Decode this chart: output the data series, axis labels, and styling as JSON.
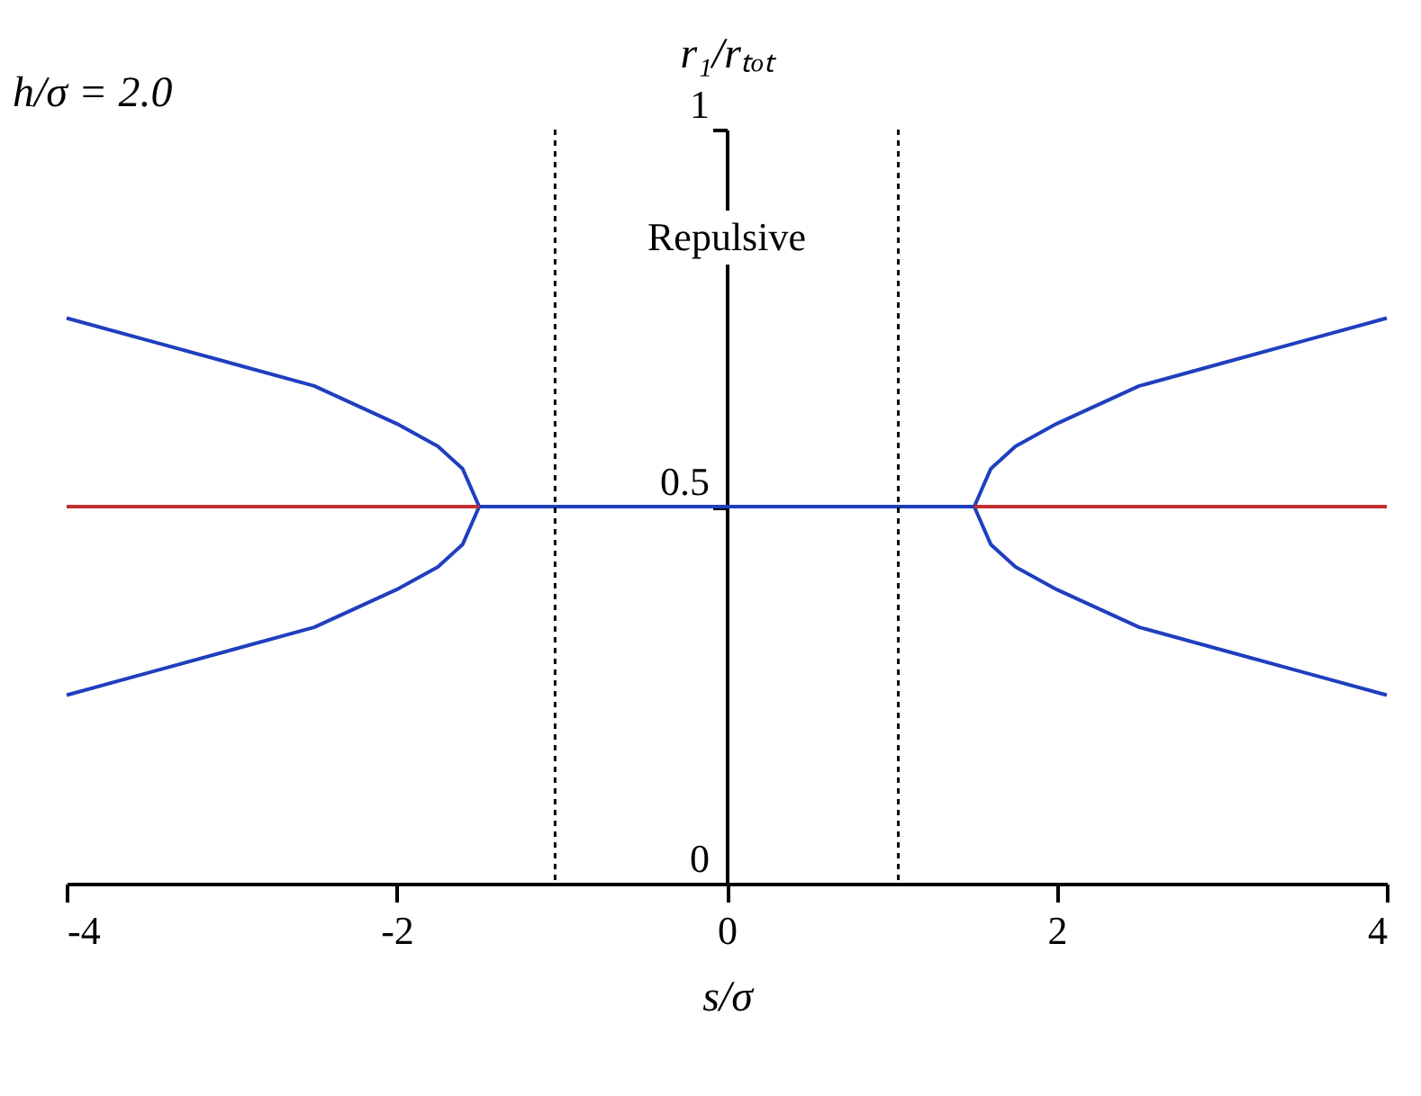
{
  "chart_data": {
    "type": "line",
    "xlabel": "s/σ",
    "ylabel": "r₁/rₜₒₜ",
    "xlim": [
      -4,
      4
    ],
    "xticks": [
      -4,
      -2,
      0,
      2,
      4
    ],
    "ylim": [
      0,
      1
    ],
    "yticks": [
      0,
      0.5,
      1
    ],
    "grid": false,
    "annotations": [
      "h/σ = 2.0",
      "Repulsive"
    ],
    "ref_lines": [
      {
        "axis": "x",
        "value": -1.04,
        "color": "#000000",
        "line_style": "dotted"
      },
      {
        "axis": "x",
        "value": 1.04,
        "color": "#000000",
        "line_style": "dotted"
      }
    ],
    "series": [
      {
        "color": "#1f3fbf",
        "x": [
          -4,
          -3.5,
          -3,
          -2.5,
          -2,
          -1.75,
          -1.6,
          -1.5
        ],
        "values": [
          0.75,
          0.72,
          0.69,
          0.66,
          0.61,
          0.58,
          0.55,
          0.5
        ]
      },
      {
        "color": "#1f3fbf",
        "x": [
          -4,
          -3.5,
          -3,
          -2.5,
          -2,
          -1.75,
          -1.6,
          -1.5
        ],
        "values": [
          0.25,
          0.28,
          0.31,
          0.34,
          0.39,
          0.42,
          0.45,
          0.5
        ]
      },
      {
        "color": "#1f3fbf",
        "x": [
          -1.5,
          1.5
        ],
        "values": [
          0.5,
          0.5
        ]
      },
      {
        "color": "#1f3fbf",
        "x": [
          1.5,
          1.6,
          1.75,
          2,
          2.5,
          3,
          3.5,
          4
        ],
        "values": [
          0.5,
          0.55,
          0.58,
          0.61,
          0.66,
          0.69,
          0.72,
          0.75
        ]
      },
      {
        "color": "#1f3fbf",
        "x": [
          1.5,
          1.6,
          1.75,
          2,
          2.5,
          3,
          3.5,
          4
        ],
        "values": [
          0.5,
          0.45,
          0.42,
          0.39,
          0.34,
          0.31,
          0.28,
          0.25
        ]
      },
      {
        "color": "#c03030",
        "x": [
          -4,
          -1.5
        ],
        "values": [
          0.5,
          0.5
        ]
      },
      {
        "color": "#c03030",
        "x": [
          1.5,
          4
        ],
        "values": [
          0.5,
          0.5
        ]
      }
    ]
  }
}
